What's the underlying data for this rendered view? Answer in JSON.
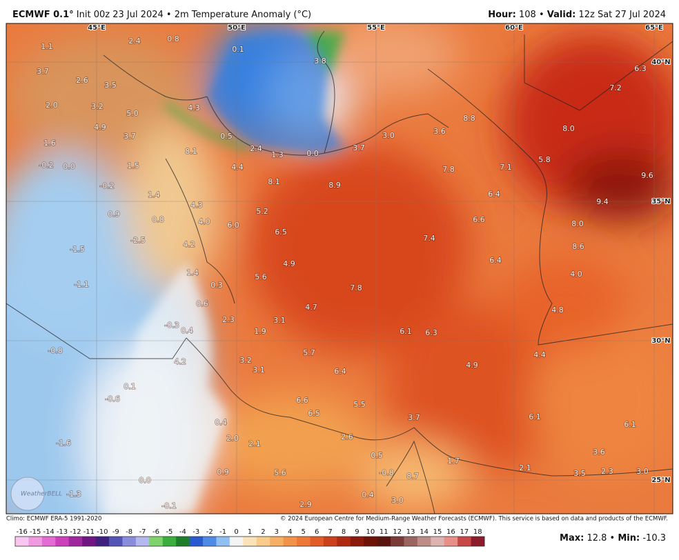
{
  "header": {
    "model": "ECMWF 0.1°",
    "subtitle": "Init 00z 23 Jul 2024 • 2m Temperature Anomaly (°C)",
    "hour_label": "Hour:",
    "hour_value": "108 •",
    "valid_label": "Valid:",
    "valid_value": "12z Sat 27 Jul 2024"
  },
  "map": {
    "longitudes": [
      "45°E",
      "50°E",
      "55°E",
      "60°E",
      "65°E"
    ],
    "latitudes": [
      "40°N",
      "35°N",
      "30°N",
      "25°N"
    ],
    "labels": [
      "0.8",
      "2.4",
      "0.1",
      "1.1",
      "3.7",
      "2.6",
      "3.5",
      "3.8",
      "6.3",
      "7.2",
      "2.0",
      "3.2",
      "5.0",
      "4.3",
      "4.9",
      "3.7",
      "0.5",
      "8.8",
      "3.6",
      "8.0",
      "3.0",
      "3.7",
      "2.4",
      "1.3",
      "0.0",
      "1.6",
      "8.1",
      "-0.2",
      "0.0",
      "1.5",
      "4.4",
      "7.8",
      "7.1",
      "5.8",
      "9.6",
      "8.1",
      "8.9",
      "-0.2",
      "1.4",
      "6.4",
      "9.4",
      "4.3",
      "5.2",
      "0.9",
      "0.8",
      "4.0",
      "6.0",
      "6.6",
      "8.0",
      "6.5",
      "-2.5",
      "4.2",
      "7.4",
      "8.6",
      "-1.5",
      "6.4",
      "4.9",
      "1.4",
      "4.0",
      "5.6",
      "0.3",
      "-1.1",
      "7.8",
      "0.6",
      "4.7",
      "4.8",
      "2.3",
      "3.1",
      "-0.3",
      "0.4",
      "1.9",
      "6.1",
      "6.3",
      "5.7",
      "-0.8",
      "4.4",
      "3.2",
      "4.2",
      "4.9",
      "3.1",
      "6.4",
      "0.1",
      "-0.6",
      "6.6",
      "5.5",
      "6.5",
      "3.7",
      "6.1",
      "0.4",
      "6.1",
      "2.0",
      "2.6",
      "2.1",
      "-1.6",
      "3.6",
      "0.5",
      "1.7",
      "2.1",
      "0.9",
      "5.6",
      "-0.8",
      "3.5",
      "2.3",
      "3.0",
      "8.7",
      "0.0",
      "-1.3",
      "0.4",
      "3.0",
      "2.9",
      "-0.1"
    ],
    "logo": "WeatherBELL"
  },
  "footer": {
    "climo": "Climo: ECMWF ERA-5 1991-2020",
    "copyright": "© 2024 European Centre for Medium-Range Weather Forecasts (ECMWF). This service is based on data and products of the ECMWF.",
    "max_label": "Max:",
    "max_value": "12.8 •",
    "min_label": "Min:",
    "min_value": "-10.3"
  },
  "colorbar": {
    "ticks": [
      "-16",
      "-15",
      "-14",
      "-13",
      "-12",
      "-11",
      "-10",
      "-9",
      "-8",
      "-7",
      "-6",
      "-5",
      "-4",
      "-3",
      "-2",
      "-1",
      "0",
      "1",
      "2",
      "3",
      "4",
      "5",
      "6",
      "7",
      "8",
      "9",
      "10",
      "11",
      "12",
      "13",
      "14",
      "15",
      "16",
      "17",
      "18"
    ],
    "colors": [
      "#f8c6f0",
      "#f09ae2",
      "#e46ad4",
      "#cc40bc",
      "#a0289e",
      "#701682",
      "#40207e",
      "#5454b6",
      "#8a8cdc",
      "#b4b8ee",
      "#7ed36a",
      "#3cae3c",
      "#1e7e2a",
      "#2a5ad0",
      "#4e8ae6",
      "#90c0f2",
      "#f4f4f4",
      "#fbe3b8",
      "#f9cc8c",
      "#f6b066",
      "#f29448",
      "#ec7a36",
      "#e25c28",
      "#cc401c",
      "#b02a12",
      "#8c1a0c",
      "#6e1208",
      "#5a1410",
      "#7a3a38",
      "#9c6460",
      "#bc8c88",
      "#dcb4b0",
      "#e89088",
      "#c84848",
      "#8c1c2c"
    ]
  }
}
